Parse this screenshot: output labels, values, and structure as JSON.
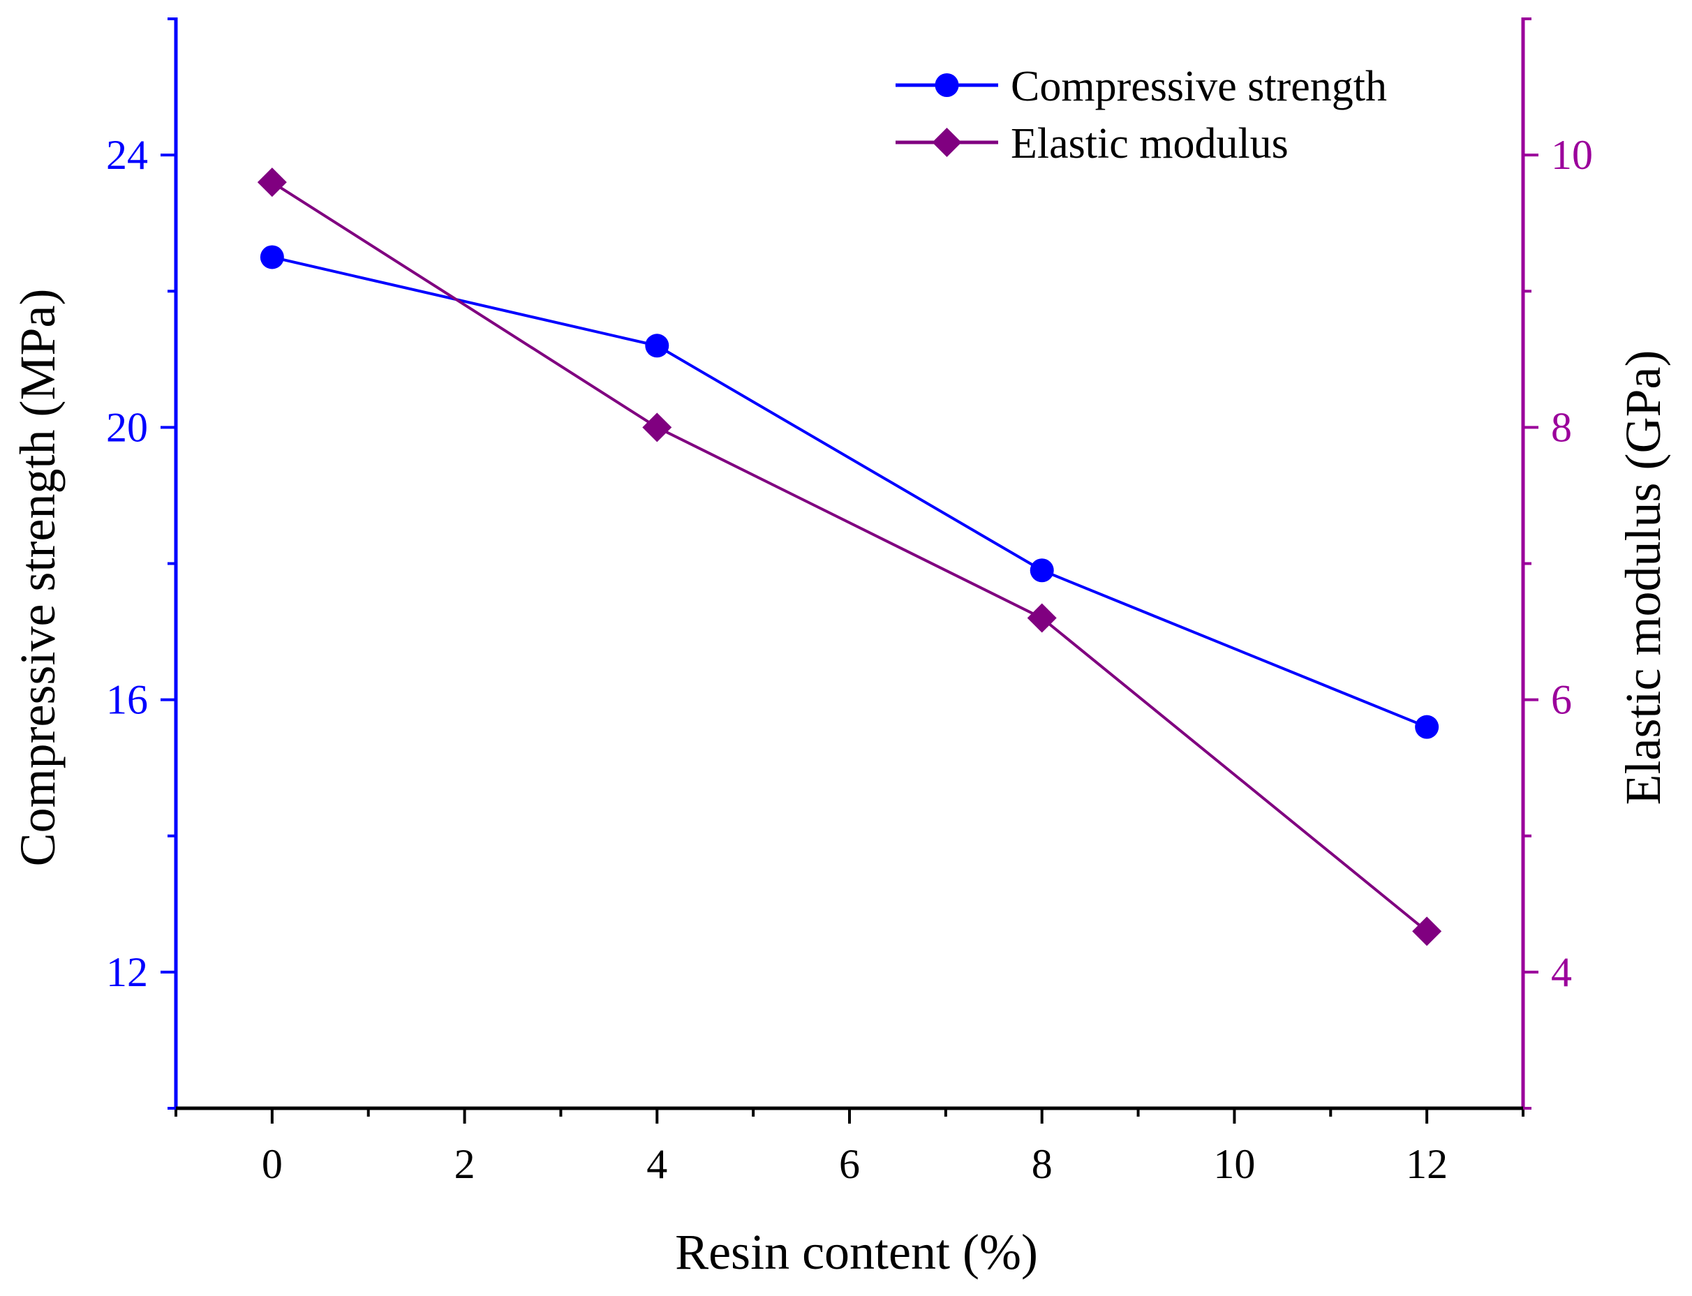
{
  "chart_data": {
    "type": "line",
    "title": "",
    "xlabel": "Resin content (%)",
    "ylabel_left": "Compressive strength (MPa)",
    "ylabel_right": "Elastic modulus (GPa)",
    "xlim": [
      -1,
      13
    ],
    "xticks": [
      0,
      2,
      4,
      6,
      8,
      10,
      12
    ],
    "ylim_left": [
      10,
      26
    ],
    "yticks_left": [
      12,
      16,
      20,
      24
    ],
    "ylim_right": [
      3,
      11
    ],
    "yticks_right": [
      4,
      6,
      8,
      10
    ],
    "legend_position": "top-right",
    "series": [
      {
        "name": "Compressive strength",
        "axis": "left",
        "marker": "circle",
        "color": "#0000FF",
        "x": [
          0,
          4,
          8,
          12
        ],
        "y": [
          22.5,
          21.2,
          17.9,
          15.6
        ]
      },
      {
        "name": "Elastic modulus",
        "axis": "right",
        "marker": "diamond",
        "color": "#800080",
        "x": [
          0,
          4,
          8,
          12
        ],
        "y": [
          9.8,
          8.0,
          6.6,
          4.3
        ]
      }
    ]
  },
  "colors": {
    "left_axis": "#0000FF",
    "right_axis": "#9B009B",
    "bottom_axis": "#000000"
  }
}
